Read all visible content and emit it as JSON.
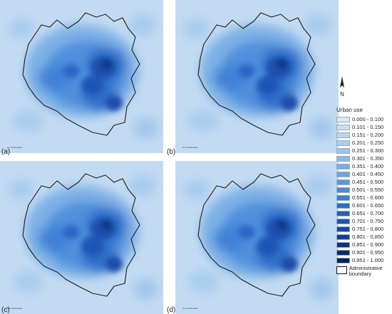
{
  "panels": [
    {
      "label": "(a)",
      "scale_text": "0 1 2 Kilometers"
    },
    {
      "label": "(b)",
      "scale_text": "0 1 2 Kilometers"
    },
    {
      "label": "(c)",
      "scale_text": "0 1 2 Kilometers"
    },
    {
      "label": "(d)",
      "scale_text": "0 1 2 Kilometers"
    }
  ],
  "legend": {
    "title": "Urban use",
    "classes": [
      {
        "range": "0.000 - 0.100",
        "color": "#d7e8f7"
      },
      {
        "range": "0.101 - 0.150",
        "color": "#c9e0f5"
      },
      {
        "range": "0.151 - 0.200",
        "color": "#bad7f2"
      },
      {
        "range": "0.201 - 0.250",
        "color": "#abcef0"
      },
      {
        "range": "0.251 - 0.300",
        "color": "#9bc4ed"
      },
      {
        "range": "0.301 - 0.350",
        "color": "#8bbaea"
      },
      {
        "range": "0.351 - 0.400",
        "color": "#7aafe7"
      },
      {
        "range": "0.401 - 0.450",
        "color": "#69a4e4"
      },
      {
        "range": "0.451 - 0.500",
        "color": "#5898e0"
      },
      {
        "range": "0.501 - 0.550",
        "color": "#478bdb"
      },
      {
        "range": "0.551 - 0.600",
        "color": "#377ed5"
      },
      {
        "range": "0.601 - 0.650",
        "color": "#2a70cc"
      },
      {
        "range": "0.651 - 0.700",
        "color": "#2062c0"
      },
      {
        "range": "0.701 - 0.750",
        "color": "#1955b2"
      },
      {
        "range": "0.751 - 0.800",
        "color": "#1449a3"
      },
      {
        "range": "0.801 - 0.850",
        "color": "#103e93"
      },
      {
        "range": "0.851 - 0.900",
        "color": "#0c3483"
      },
      {
        "range": "0.901 - 0.950",
        "color": "#092a72"
      },
      {
        "range": "0.951 - 1.000",
        "color": "#062061"
      }
    ],
    "boundary_label": "Administrative boundary"
  }
}
